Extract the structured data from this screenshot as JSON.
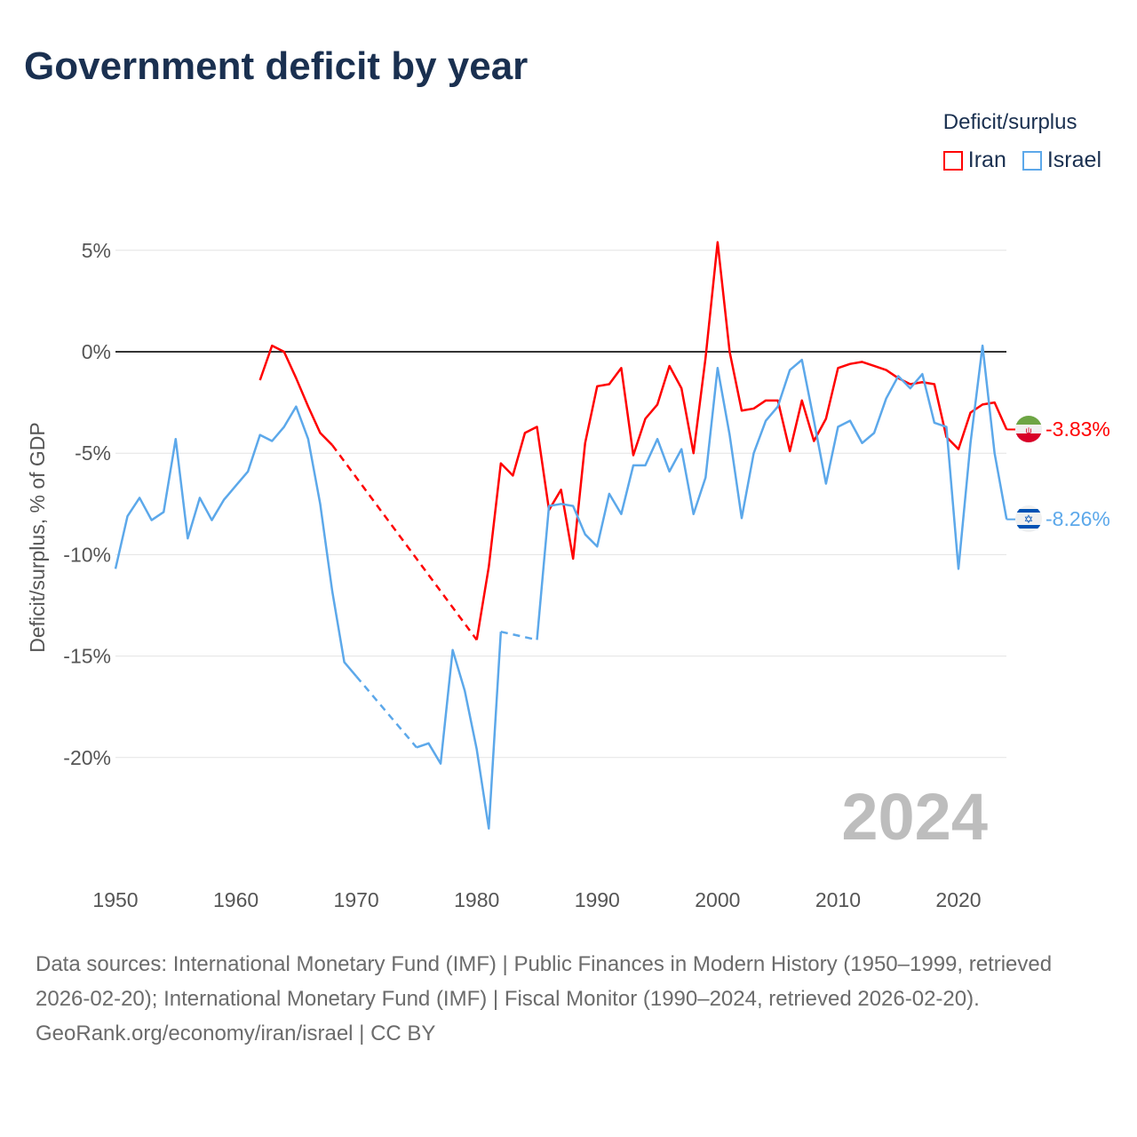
{
  "title": "Government deficit by year",
  "legend": {
    "title": "Deficit/surplus",
    "items": [
      {
        "name": "Iran",
        "color": "#ff0000"
      },
      {
        "name": "Israel",
        "color": "#5ca8ea"
      }
    ]
  },
  "chart_data": {
    "type": "line",
    "title": "Government deficit by year",
    "ylabel": "Deficit/surplus, % of GDP",
    "xlabel": "",
    "xlim": [
      1950,
      2024
    ],
    "ylim": [
      -24.5,
      6
    ],
    "x_ticks": [
      1950,
      1960,
      1970,
      1980,
      1990,
      2000,
      2010,
      2020
    ],
    "x_tick_labels": [
      "1950",
      "1960",
      "1970",
      "1980",
      "1990",
      "2000",
      "2010",
      "2020"
    ],
    "y_ticks": [
      5,
      0,
      -5,
      -10,
      -15,
      -20
    ],
    "y_tick_labels": [
      "5%",
      "0%",
      "-5%",
      "-10%",
      "-15%",
      "-20%"
    ],
    "year_watermark": "2024",
    "grid": true,
    "legend_position": "top-right",
    "series": [
      {
        "name": "Iran",
        "color": "#ff0000",
        "end_label": "-3.83%",
        "start_year": 1962,
        "values": [
          -1.4,
          0.3,
          0.0,
          -1.3,
          -2.7,
          -4.0,
          -4.6,
          null,
          null,
          null,
          null,
          null,
          null,
          null,
          null,
          null,
          null,
          null,
          -14.2,
          -10.6,
          -5.5,
          -6.1,
          -4.0,
          -3.7,
          -7.8,
          -6.8,
          -10.2,
          -4.5,
          -1.7,
          -1.6,
          -0.8,
          -5.1,
          -3.3,
          -2.6,
          -0.7,
          -1.8,
          -5.0,
          -0.3,
          5.4,
          0.0,
          -2.9,
          -2.8,
          -2.4,
          -2.4,
          -4.9,
          -2.4,
          -4.4,
          -3.3,
          -0.8,
          -0.6,
          -0.5,
          -0.7,
          -0.9,
          -1.3,
          -1.6,
          -1.5,
          -1.6,
          -4.2,
          -4.8,
          -3.0,
          -2.6,
          -2.5,
          -3.83
        ]
      },
      {
        "name": "Israel",
        "color": "#5ca8ea",
        "end_label": "-8.26%",
        "start_year": 1950,
        "values": [
          -10.7,
          -8.1,
          -7.2,
          -8.3,
          -7.9,
          -4.3,
          -9.2,
          -7.2,
          -8.3,
          -7.3,
          -6.6,
          -5.9,
          -4.1,
          -4.4,
          -3.7,
          -2.7,
          -4.3,
          -7.5,
          -11.8,
          -15.3,
          -16.0,
          null,
          null,
          null,
          null,
          -19.5,
          -19.3,
          -20.3,
          -14.7,
          -16.7,
          -19.6,
          -23.5,
          -13.8,
          null,
          null,
          -14.2,
          -7.6,
          -7.5,
          -7.6,
          -9.0,
          -9.6,
          -7.0,
          -8.0,
          -5.6,
          -5.6,
          -4.3,
          -5.9,
          -4.8,
          -8.0,
          -6.2,
          -0.8,
          -4.1,
          -8.2,
          -5.0,
          -3.4,
          -2.7,
          -0.9,
          -0.4,
          -3.4,
          -6.5,
          -3.7,
          -3.4,
          -4.5,
          -4.0,
          -2.3,
          -1.2,
          -1.8,
          -1.1,
          -3.5,
          -3.7,
          -10.7,
          -4.5,
          0.3,
          -5.0,
          -8.26
        ]
      }
    ]
  },
  "footer": {
    "sources": "Data sources: International Monetary Fund (IMF) | Public Finances in Modern History (1950–1999, retrieved 2026-02-20); International Monetary Fund (IMF) | Fiscal Monitor (1990–2024, retrieved 2026-02-20).",
    "attribution": "GeoRank.org/economy/iran/israel | CC BY"
  }
}
